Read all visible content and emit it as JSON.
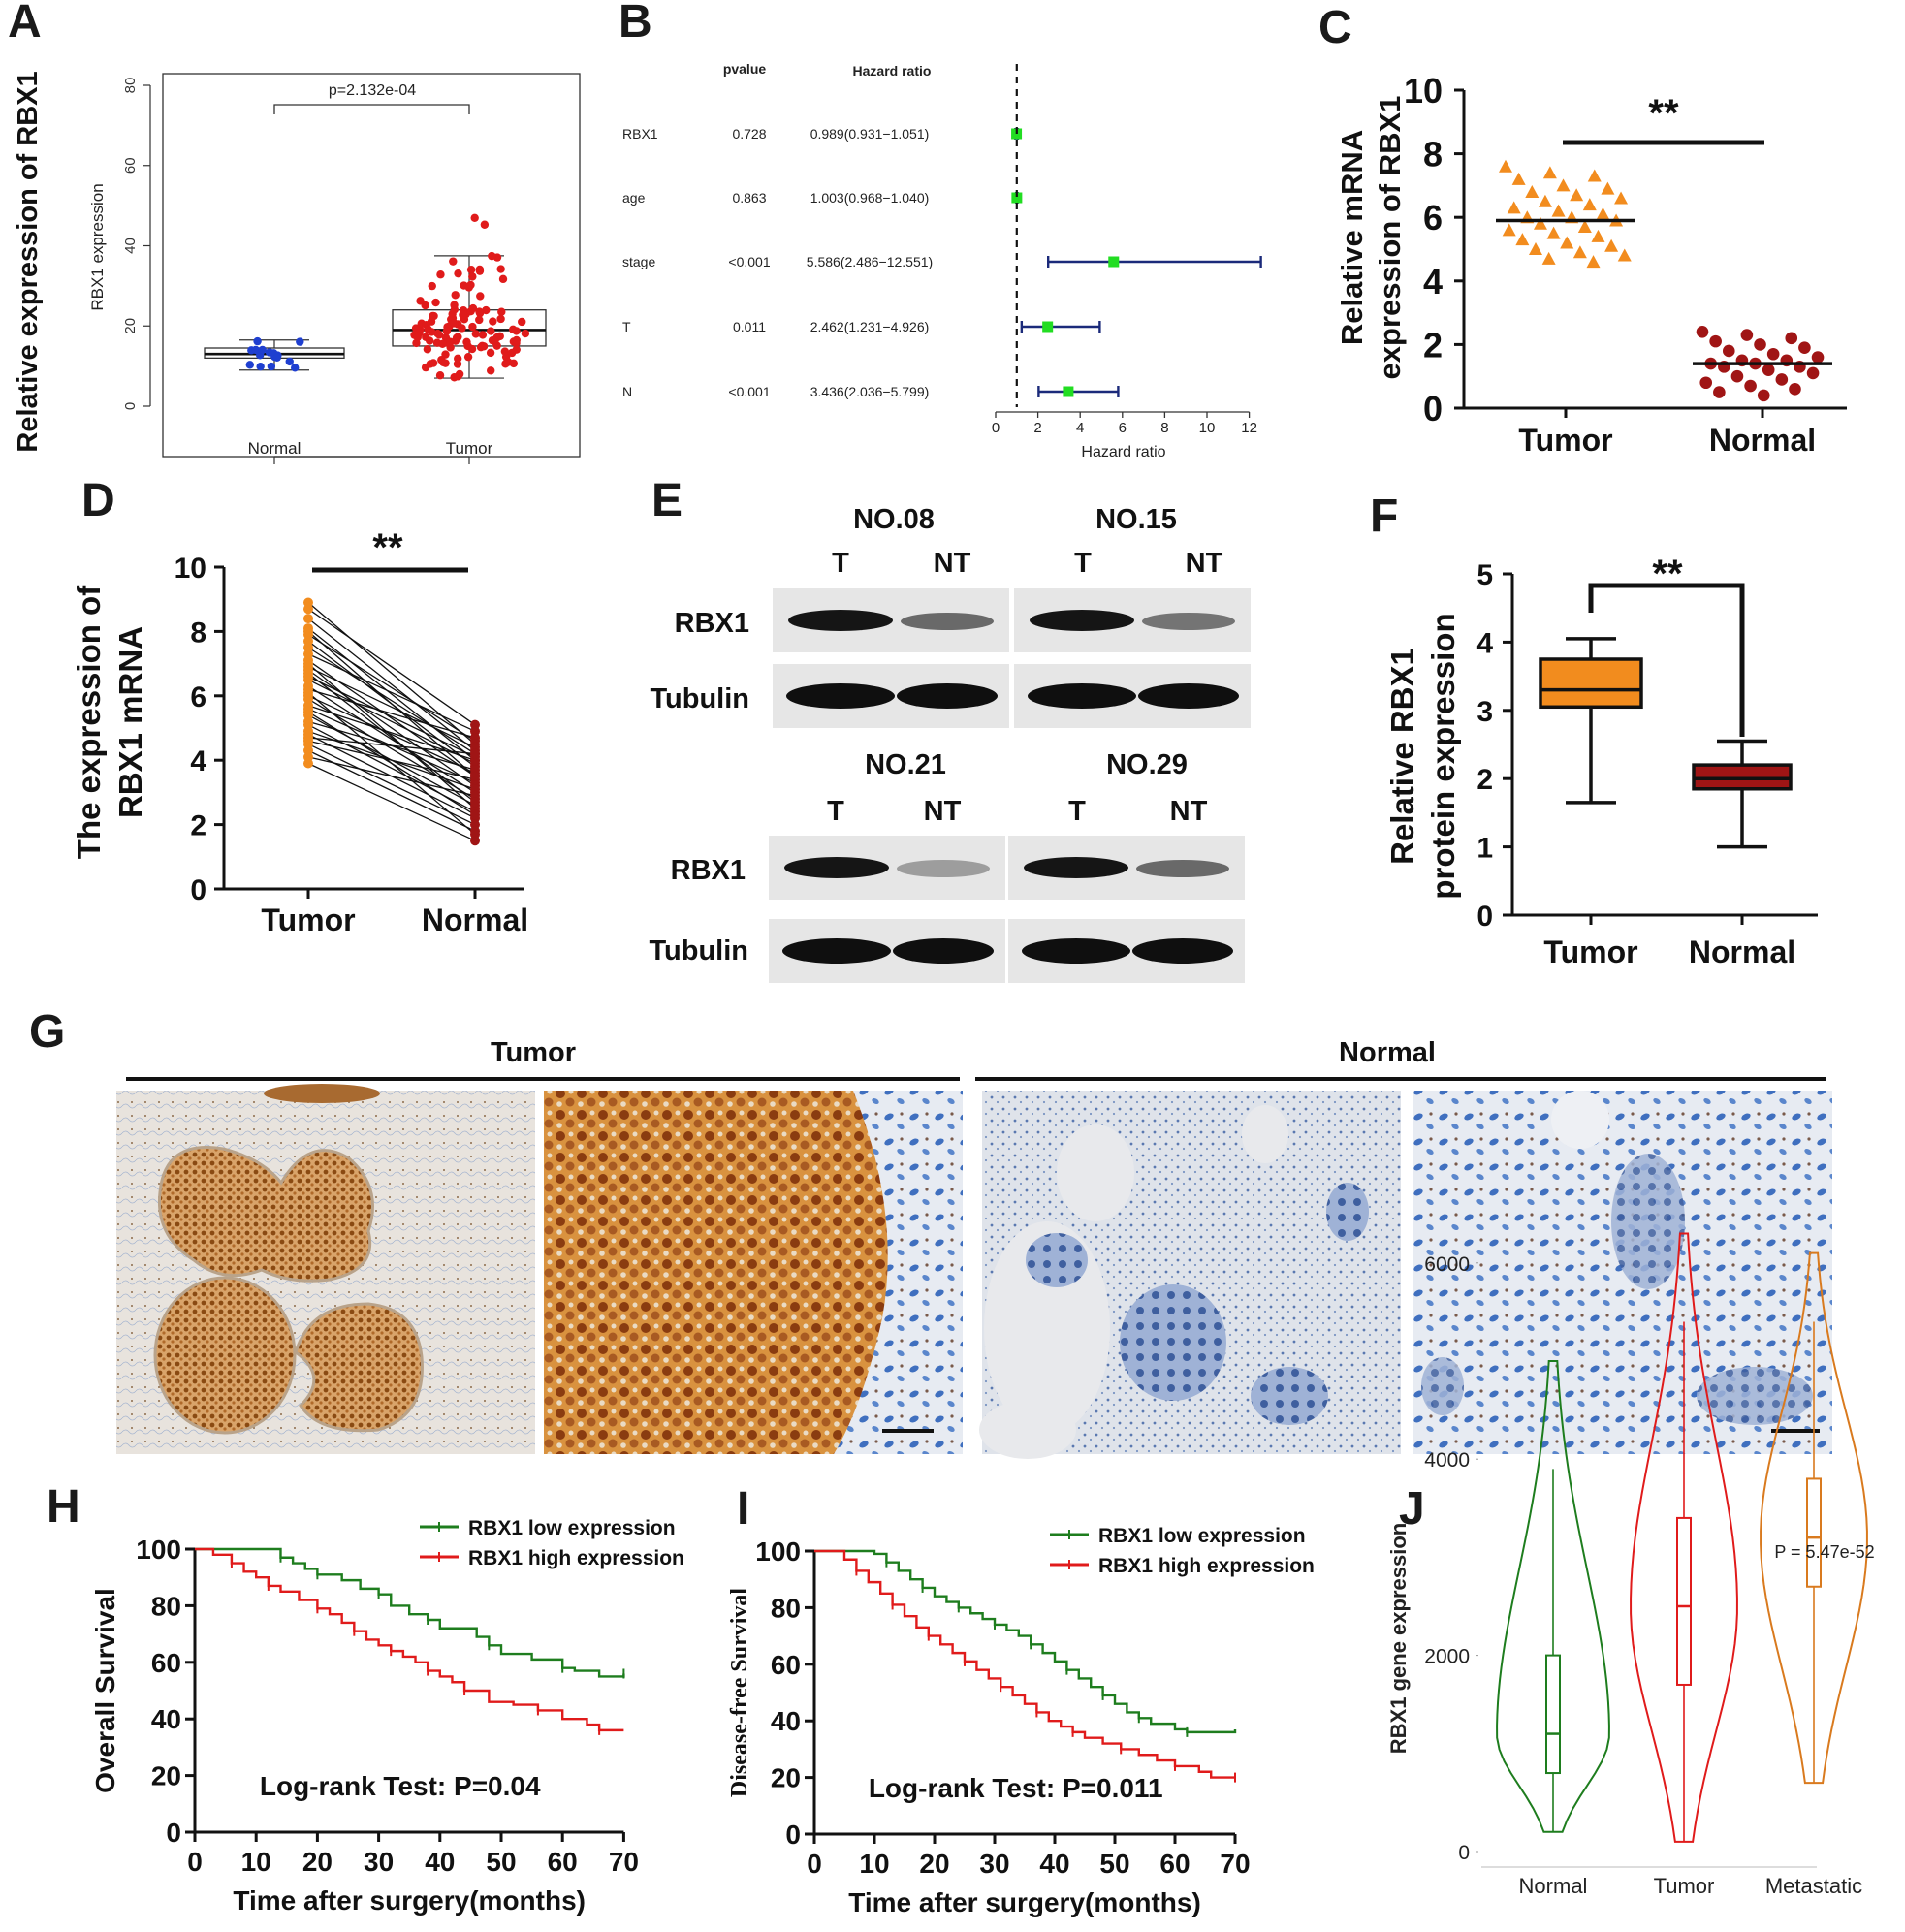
{
  "panel_letters": [
    "A",
    "B",
    "C",
    "D",
    "E",
    "F",
    "G",
    "H",
    "I",
    "J"
  ],
  "chart_data": [
    {
      "panel": "A",
      "type": "boxplot",
      "outer_ylabel": "Relative expression  of RBX1",
      "ylabel": "RBX1 expression",
      "categories": [
        "Normal",
        "Tumor"
      ],
      "yticks": [
        "0",
        "20",
        "40",
        "60",
        "80"
      ],
      "ylim": [
        0,
        80
      ],
      "pvalue_label": "p=2.132e-04",
      "boxes": [
        {
          "name": "Normal",
          "whisker_low": 9,
          "q1": 12,
          "median": 13,
          "q3": 14.5,
          "whisker_high": 16.5,
          "color": "#1f3fd0"
        },
        {
          "name": "Tumor",
          "whisker_low": 7,
          "q1": 15,
          "median": 19,
          "q3": 24,
          "whisker_high": 37.5,
          "color": "#e01b1b"
        }
      ]
    },
    {
      "panel": "B",
      "type": "forest",
      "col_pvalue": "pvalue",
      "col_hr": "Hazard ratio",
      "xlabel": "Hazard ratio",
      "xticks": [
        "0",
        "2",
        "4",
        "6",
        "8",
        "10",
        "12"
      ],
      "xlim": [
        0,
        12
      ],
      "reference": 1,
      "rows": [
        {
          "name": "RBX1",
          "pvalue": "0.728",
          "hr_text": "0.989(0.931−1.051)",
          "hr": 0.989,
          "low": 0.931,
          "high": 1.051
        },
        {
          "name": "age",
          "pvalue": "0.863",
          "hr_text": "1.003(0.968−1.040)",
          "hr": 1.003,
          "low": 0.968,
          "high": 1.04
        },
        {
          "name": "stage",
          "pvalue": "<0.001",
          "hr_text": "5.586(2.486−12.551)",
          "hr": 5.586,
          "low": 2.486,
          "high": 12.551
        },
        {
          "name": "T",
          "pvalue": "0.011",
          "hr_text": "2.462(1.231−4.926)",
          "hr": 2.462,
          "low": 1.231,
          "high": 4.926
        },
        {
          "name": "N",
          "pvalue": "<0.001",
          "hr_text": "3.436(2.036−5.799)",
          "hr": 3.436,
          "low": 2.036,
          "high": 5.799
        }
      ]
    },
    {
      "panel": "C",
      "type": "scatter",
      "ylabel_line1": "Relative mRNA",
      "ylabel_line2": "expression of RBX1",
      "categories": [
        "Tumor",
        "Normal"
      ],
      "yticks": [
        "0",
        "2",
        "4",
        "6",
        "8",
        "10"
      ],
      "ylim": [
        0,
        10
      ],
      "significance": "**",
      "groups": [
        {
          "name": "Tumor",
          "mean": 5.9,
          "marker": "triangle",
          "color": "#f28c1e",
          "values": [
            7.6,
            7.4,
            7.3,
            7.2,
            7.0,
            6.9,
            6.8,
            6.7,
            6.6,
            6.5,
            6.4,
            6.3,
            6.2,
            6.1,
            6.0,
            6.0,
            5.9,
            5.8,
            5.7,
            5.6,
            5.5,
            5.4,
            5.3,
            5.2,
            5.1,
            5.0,
            4.9,
            4.8,
            4.7,
            4.6
          ]
        },
        {
          "name": "Normal",
          "mean": 1.4,
          "marker": "circle",
          "color": "#a01515",
          "values": [
            2.4,
            2.3,
            2.2,
            2.1,
            2.0,
            1.9,
            1.8,
            1.7,
            1.6,
            1.5,
            1.5,
            1.4,
            1.4,
            1.3,
            1.3,
            1.2,
            1.1,
            1.0,
            0.9,
            0.8,
            0.7,
            0.6,
            0.5,
            0.4
          ]
        }
      ]
    },
    {
      "panel": "D",
      "type": "paired",
      "ylabel_line1": "The expression of",
      "ylabel_line2": "RBX1 mRNA",
      "categories": [
        "Tumor",
        "Normal"
      ],
      "yticks": [
        "0",
        "2",
        "4",
        "6",
        "8",
        "10"
      ],
      "ylim": [
        0,
        10
      ],
      "significance": "**",
      "pairs": [
        [
          8.9,
          4.5
        ],
        [
          8.7,
          5.1
        ],
        [
          8.4,
          4.3
        ],
        [
          8.1,
          4.0
        ],
        [
          7.9,
          4.6
        ],
        [
          7.7,
          3.8
        ],
        [
          7.5,
          4.2
        ],
        [
          7.3,
          4.9
        ],
        [
          7.1,
          3.5
        ],
        [
          6.9,
          4.4
        ],
        [
          6.8,
          3.2
        ],
        [
          6.6,
          4.1
        ],
        [
          6.5,
          3.9
        ],
        [
          6.3,
          3.0
        ],
        [
          6.2,
          4.7
        ],
        [
          6.0,
          3.6
        ],
        [
          5.9,
          2.8
        ],
        [
          5.7,
          4.0
        ],
        [
          5.6,
          3.3
        ],
        [
          5.4,
          2.6
        ],
        [
          5.2,
          3.7
        ],
        [
          5.1,
          2.4
        ],
        [
          4.9,
          3.1
        ],
        [
          4.8,
          2.2
        ],
        [
          4.6,
          3.4
        ],
        [
          4.5,
          2.0
        ],
        [
          4.3,
          1.8
        ],
        [
          4.1,
          2.9
        ],
        [
          3.9,
          1.5
        ],
        [
          6.1,
          1.7
        ],
        [
          7.0,
          2.5
        ],
        [
          5.5,
          2.3
        ],
        [
          4.7,
          4.2
        ],
        [
          8.0,
          3.5
        ],
        [
          6.7,
          2.7
        ]
      ],
      "colors": {
        "tumor": "#f28c1e",
        "normal": "#a01515"
      }
    },
    {
      "panel": "E",
      "type": "blot",
      "blocks": [
        {
          "sample": "NO.08",
          "lanes": [
            "T",
            "NT"
          ],
          "rbx1": [
            1.0,
            0.6
          ]
        },
        {
          "sample": "NO.15",
          "lanes": [
            "T",
            "NT"
          ],
          "rbx1": [
            1.0,
            0.55
          ]
        },
        {
          "sample": "NO.21",
          "lanes": [
            "T",
            "NT"
          ],
          "rbx1": [
            1.0,
            0.35
          ]
        },
        {
          "sample": "NO.29",
          "lanes": [
            "T",
            "NT"
          ],
          "rbx1": [
            1.0,
            0.6
          ]
        }
      ],
      "row_labels": [
        "RBX1",
        "Tubulin"
      ]
    },
    {
      "panel": "F",
      "type": "boxplot",
      "ylabel_line1": "Relative RBX1",
      "ylabel_line2": "protein expression",
      "categories": [
        "Tumor",
        "Normal"
      ],
      "yticks": [
        "0",
        "1",
        "2",
        "3",
        "4",
        "5"
      ],
      "ylim": [
        0,
        5
      ],
      "significance": "**",
      "boxes": [
        {
          "name": "Tumor",
          "whisker_low": 1.65,
          "q1": 3.05,
          "median": 3.3,
          "q3": 3.75,
          "whisker_high": 4.05,
          "color": "#f28c1e"
        },
        {
          "name": "Normal",
          "whisker_low": 1.0,
          "q1": 1.85,
          "median": 2.0,
          "q3": 2.2,
          "whisker_high": 2.55,
          "color": "#a01515"
        }
      ]
    },
    {
      "panel": "G",
      "type": "ihc",
      "groups": [
        "Tumor",
        "Normal"
      ]
    },
    {
      "panel": "H",
      "type": "line",
      "ylabel": "Overall Survival",
      "xlabel": "Time after surgery(months)",
      "xticks": [
        "0",
        "10",
        "20",
        "30",
        "40",
        "50",
        "60",
        "70"
      ],
      "yticks": [
        "0",
        "20",
        "40",
        "60",
        "80",
        "100"
      ],
      "xlim": [
        0,
        70
      ],
      "ylim": [
        0,
        100
      ],
      "annotation": "Log-rank    Test: P=0.04",
      "series": [
        {
          "name": "RBX1  low expression",
          "color": "#1e7d1e",
          "x": [
            0,
            10,
            14,
            16,
            18,
            20,
            24,
            27,
            30,
            32,
            35,
            38,
            40,
            46,
            48,
            50,
            55,
            60,
            62,
            66,
            70
          ],
          "y": [
            100,
            100,
            97,
            95,
            93,
            91,
            89,
            86,
            84,
            80,
            77,
            75,
            72,
            69,
            66,
            63,
            61,
            58,
            57,
            55,
            56
          ]
        },
        {
          "name": "RBX1 high expression",
          "color": "#e01b1b",
          "x": [
            0,
            3,
            6,
            8,
            10,
            12,
            14,
            17,
            20,
            22,
            24,
            26,
            28,
            30,
            32,
            34,
            36,
            38,
            40,
            42,
            44,
            48,
            52,
            56,
            60,
            64,
            66,
            70
          ],
          "y": [
            100,
            98,
            95,
            92,
            90,
            87,
            85,
            82,
            79,
            77,
            74,
            71,
            68,
            66,
            64,
            62,
            60,
            57,
            55,
            53,
            50,
            46,
            45,
            43,
            40,
            38,
            36,
            36
          ]
        }
      ]
    },
    {
      "panel": "I",
      "type": "line",
      "ylabel": "Disease-free Survival",
      "xlabel": "Time after surgery(months)",
      "xticks": [
        "0",
        "10",
        "20",
        "30",
        "40",
        "50",
        "60",
        "70"
      ],
      "yticks": [
        "0",
        "20",
        "40",
        "60",
        "80",
        "100"
      ],
      "xlim": [
        0,
        70
      ],
      "ylim": [
        0,
        100
      ],
      "annotation": "Log-rank    Test: P=0.011",
      "series": [
        {
          "name": "RBX1 low expression",
          "color": "#1e7d1e",
          "x": [
            0,
            10,
            12,
            14,
            16,
            18,
            20,
            22,
            24,
            26,
            28,
            30,
            32,
            34,
            36,
            38,
            40,
            42,
            44,
            46,
            48,
            50,
            52,
            54,
            56,
            60,
            62,
            66,
            70
          ],
          "y": [
            100,
            99,
            96,
            93,
            90,
            87,
            84,
            82,
            80,
            78,
            76,
            74,
            72,
            70,
            67,
            64,
            61,
            58,
            55,
            52,
            49,
            46,
            43,
            41,
            39,
            37,
            36,
            36,
            37
          ]
        },
        {
          "name": "RBX1 high expression",
          "color": "#e01b1b",
          "x": [
            0,
            5,
            7,
            9,
            11,
            13,
            15,
            17,
            19,
            21,
            23,
            25,
            27,
            29,
            31,
            33,
            35,
            37,
            39,
            41,
            43,
            45,
            48,
            51,
            54,
            57,
            60,
            64,
            66,
            70
          ],
          "y": [
            100,
            97,
            93,
            89,
            85,
            81,
            77,
            73,
            70,
            67,
            64,
            61,
            58,
            55,
            52,
            49,
            46,
            43,
            40,
            38,
            36,
            34,
            32,
            30,
            28,
            26,
            24,
            22,
            20,
            20
          ]
        }
      ]
    },
    {
      "panel": "J",
      "type": "violin",
      "ylabel": "RBX1 gene expression",
      "categories": [
        "Normal",
        "Tumor",
        "Metastatic"
      ],
      "yticks": [
        "0",
        "2000",
        "4000",
        "6000"
      ],
      "ylim": [
        0,
        6500
      ],
      "pvalue_label": "P = 5.47e-52",
      "groups": [
        {
          "name": "Normal",
          "color": "#1e7d1e",
          "min": 200,
          "max": 5000,
          "q1": 800,
          "median": 1200,
          "q3": 2000,
          "whisker_low": 200,
          "whisker_high": 3900
        },
        {
          "name": "Tumor",
          "color": "#e01b1b",
          "min": 100,
          "max": 6300,
          "q1": 1700,
          "median": 2500,
          "q3": 3400,
          "whisker_low": 100,
          "whisker_high": 5400
        },
        {
          "name": "Metastatic",
          "color": "#d97a1e",
          "min": 700,
          "max": 6100,
          "q1": 2700,
          "median": 3200,
          "q3": 3800,
          "whisker_low": 700,
          "whisker_high": 5400
        }
      ]
    }
  ]
}
